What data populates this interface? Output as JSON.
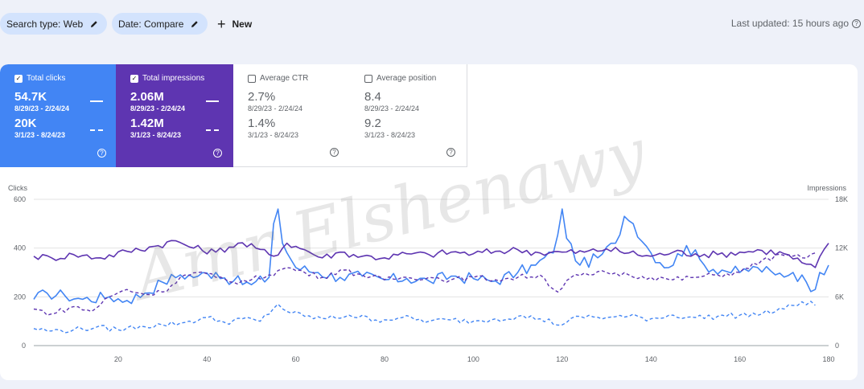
{
  "filters": {
    "search_type": "Search type: Web",
    "date": "Date: Compare",
    "new_label": "New"
  },
  "last_updated": "Last updated: 15 hours ago",
  "metrics": {
    "clicks": {
      "label": "Total clicks",
      "value1": "54.7K",
      "range1": "8/29/23 - 2/24/24",
      "value2": "20K",
      "range2": "3/1/23 - 8/24/23",
      "checked": true
    },
    "impressions": {
      "label": "Total impressions",
      "value1": "2.06M",
      "range1": "8/29/23 - 2/24/24",
      "value2": "1.42M",
      "range2": "3/1/23 - 8/24/23",
      "checked": true
    },
    "ctr": {
      "label": "Average CTR",
      "value1": "2.7%",
      "range1": "8/29/23 - 2/24/24",
      "value2": "1.4%",
      "range2": "3/1/23 - 8/24/23",
      "checked": false
    },
    "position": {
      "label": "Average position",
      "value1": "8.4",
      "range1": "8/29/23 - 2/24/24",
      "value2": "9.2",
      "range2": "3/1/23 - 8/24/23",
      "checked": false
    }
  },
  "watermark": "Amr Elshenawy",
  "colors": {
    "clicks": "#4285f4",
    "impressions": "#5e35b1",
    "chip_bg": "#d3e3fd"
  },
  "chart_data": {
    "type": "line",
    "xlabel": "",
    "left_axis": {
      "label": "Clicks",
      "ticks": [
        0,
        200,
        400,
        600
      ],
      "range": [
        0,
        600
      ]
    },
    "right_axis": {
      "label": "Impressions",
      "ticks": [
        "0",
        "6K",
        "12K",
        "18K"
      ],
      "range": [
        0,
        18000
      ]
    },
    "x_ticks": [
      20,
      40,
      60,
      80,
      100,
      120,
      140,
      160,
      180
    ],
    "x_range": [
      1,
      180
    ],
    "series": [
      {
        "name": "Total clicks",
        "axis": "left",
        "style": "solid",
        "color": "#4285f4",
        "keypoints": [
          [
            1,
            190
          ],
          [
            4,
            215
          ],
          [
            8,
            205
          ],
          [
            12,
            190
          ],
          [
            18,
            200
          ],
          [
            22,
            185
          ],
          [
            26,
            215
          ],
          [
            30,
            260
          ],
          [
            34,
            290
          ],
          [
            38,
            285
          ],
          [
            42,
            300
          ],
          [
            46,
            265
          ],
          [
            50,
            250
          ],
          [
            54,
            280
          ],
          [
            55,
            500
          ],
          [
            56,
            560
          ],
          [
            57,
            420
          ],
          [
            60,
            320
          ],
          [
            65,
            300
          ],
          [
            70,
            280
          ],
          [
            75,
            285
          ],
          [
            80,
            270
          ],
          [
            85,
            275
          ],
          [
            90,
            265
          ],
          [
            95,
            285
          ],
          [
            100,
            275
          ],
          [
            105,
            265
          ],
          [
            110,
            300
          ],
          [
            114,
            330
          ],
          [
            118,
            380
          ],
          [
            120,
            560
          ],
          [
            121,
            440
          ],
          [
            124,
            330
          ],
          [
            128,
            360
          ],
          [
            132,
            420
          ],
          [
            134,
            530
          ],
          [
            136,
            500
          ],
          [
            140,
            380
          ],
          [
            144,
            320
          ],
          [
            148,
            410
          ],
          [
            152,
            330
          ],
          [
            156,
            310
          ],
          [
            160,
            300
          ],
          [
            164,
            320
          ],
          [
            168,
            290
          ],
          [
            172,
            300
          ],
          [
            175,
            260
          ],
          [
            177,
            230
          ],
          [
            178,
            300
          ],
          [
            180,
            330
          ]
        ]
      },
      {
        "name": "Total impressions",
        "axis": "right",
        "style": "solid",
        "color": "#5e35b1",
        "keypoints": [
          [
            1,
            11000
          ],
          [
            5,
            10800
          ],
          [
            10,
            11200
          ],
          [
            16,
            10800
          ],
          [
            22,
            11600
          ],
          [
            28,
            12200
          ],
          [
            33,
            12900
          ],
          [
            37,
            12000
          ],
          [
            42,
            11500
          ],
          [
            47,
            12600
          ],
          [
            51,
            12000
          ],
          [
            55,
            11000
          ],
          [
            58,
            12600
          ],
          [
            62,
            11800
          ],
          [
            66,
            10800
          ],
          [
            70,
            11500
          ],
          [
            75,
            11000
          ],
          [
            80,
            10800
          ],
          [
            85,
            11300
          ],
          [
            90,
            11200
          ],
          [
            95,
            11500
          ],
          [
            100,
            11300
          ],
          [
            105,
            11600
          ],
          [
            110,
            11800
          ],
          [
            115,
            11400
          ],
          [
            120,
            11500
          ],
          [
            125,
            11500
          ],
          [
            130,
            11900
          ],
          [
            135,
            11400
          ],
          [
            140,
            11000
          ],
          [
            145,
            11500
          ],
          [
            150,
            11300
          ],
          [
            155,
            11200
          ],
          [
            160,
            11500
          ],
          [
            165,
            11700
          ],
          [
            170,
            11300
          ],
          [
            174,
            10200
          ],
          [
            177,
            9600
          ],
          [
            180,
            12600
          ]
        ]
      },
      {
        "name": "Total clicks (previous)",
        "axis": "left",
        "style": "dashed",
        "color": "#4285f4",
        "keypoints": [
          [
            1,
            70
          ],
          [
            5,
            60
          ],
          [
            10,
            65
          ],
          [
            15,
            75
          ],
          [
            20,
            65
          ],
          [
            25,
            80
          ],
          [
            30,
            85
          ],
          [
            35,
            95
          ],
          [
            40,
            115
          ],
          [
            44,
            95
          ],
          [
            48,
            110
          ],
          [
            52,
            100
          ],
          [
            56,
            170
          ],
          [
            58,
            140
          ],
          [
            62,
            120
          ],
          [
            67,
            110
          ],
          [
            72,
            125
          ],
          [
            78,
            105
          ],
          [
            84,
            115
          ],
          [
            90,
            100
          ],
          [
            95,
            105
          ],
          [
            100,
            100
          ],
          [
            105,
            110
          ],
          [
            110,
            120
          ],
          [
            115,
            110
          ],
          [
            120,
            85
          ],
          [
            124,
            120
          ],
          [
            130,
            115
          ],
          [
            135,
            120
          ],
          [
            140,
            110
          ],
          [
            145,
            125
          ],
          [
            150,
            115
          ],
          [
            155,
            120
          ],
          [
            160,
            125
          ],
          [
            165,
            130
          ],
          [
            170,
            150
          ],
          [
            174,
            180
          ],
          [
            177,
            165
          ]
        ]
      },
      {
        "name": "Total impressions (previous)",
        "axis": "right",
        "style": "dashed",
        "color": "#5e35b1",
        "keypoints": [
          [
            1,
            4500
          ],
          [
            5,
            3900
          ],
          [
            10,
            4800
          ],
          [
            14,
            4200
          ],
          [
            18,
            6000
          ],
          [
            22,
            6900
          ],
          [
            26,
            6300
          ],
          [
            30,
            6600
          ],
          [
            34,
            8400
          ],
          [
            38,
            9000
          ],
          [
            42,
            8400
          ],
          [
            46,
            7800
          ],
          [
            50,
            8100
          ],
          [
            54,
            8700
          ],
          [
            58,
            9600
          ],
          [
            62,
            9000
          ],
          [
            66,
            8400
          ],
          [
            70,
            9300
          ],
          [
            75,
            8700
          ],
          [
            80,
            8100
          ],
          [
            85,
            8400
          ],
          [
            90,
            8400
          ],
          [
            95,
            8100
          ],
          [
            100,
            8400
          ],
          [
            105,
            8100
          ],
          [
            110,
            8400
          ],
          [
            115,
            8700
          ],
          [
            119,
            6600
          ],
          [
            122,
            8400
          ],
          [
            126,
            8700
          ],
          [
            130,
            9000
          ],
          [
            135,
            8700
          ],
          [
            140,
            8400
          ],
          [
            145,
            8100
          ],
          [
            150,
            8400
          ],
          [
            155,
            8700
          ],
          [
            160,
            9000
          ],
          [
            165,
            10500
          ],
          [
            170,
            11100
          ],
          [
            174,
            10800
          ],
          [
            177,
            11400
          ]
        ]
      }
    ]
  }
}
